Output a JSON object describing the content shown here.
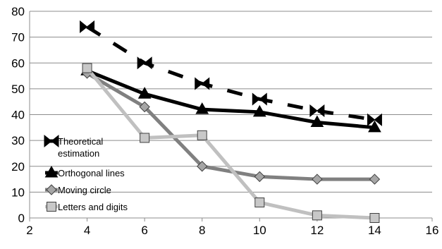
{
  "chart_data": {
    "type": "line",
    "title": "",
    "xlabel": "",
    "ylabel": "",
    "xlim": [
      2,
      16
    ],
    "ylim": [
      0,
      80
    ],
    "x_ticks": [
      2,
      4,
      6,
      8,
      10,
      12,
      14,
      16
    ],
    "y_ticks": [
      0,
      10,
      20,
      30,
      40,
      50,
      60,
      70,
      80
    ],
    "grid": "horizontal",
    "legend_position": "bottom-left",
    "series": [
      {
        "name": "Theoretical estimation",
        "legend_lines": [
          "Theoretical",
          "estimation"
        ],
        "color": "#000000",
        "line_style": "dashed",
        "marker": "bowtie",
        "x": [
          4,
          6,
          8,
          10,
          12,
          14
        ],
        "y": [
          74,
          60,
          52,
          46,
          41.5,
          38
        ]
      },
      {
        "name": "Orthogonal lines",
        "legend_lines": [
          "Orthogonal lines"
        ],
        "color": "#000000",
        "line_style": "solid",
        "marker": "triangle",
        "x": [
          4,
          6,
          8,
          10,
          12,
          14
        ],
        "y": [
          57,
          48,
          42,
          41,
          37,
          35
        ]
      },
      {
        "name": "Moving circle",
        "legend_lines": [
          "Moving circle"
        ],
        "color": "#808080",
        "line_style": "solid",
        "marker": "diamond",
        "x": [
          4,
          6,
          8,
          10,
          12,
          14
        ],
        "y": [
          56,
          43,
          20,
          16,
          15,
          15
        ]
      },
      {
        "name": "Letters and digits",
        "legend_lines": [
          "Letters and digits"
        ],
        "color": "#c0c0c0",
        "line_style": "solid",
        "marker": "square",
        "x": [
          4,
          6,
          8,
          10,
          12,
          14
        ],
        "y": [
          58,
          31,
          32,
          6,
          1,
          0
        ]
      }
    ]
  }
}
